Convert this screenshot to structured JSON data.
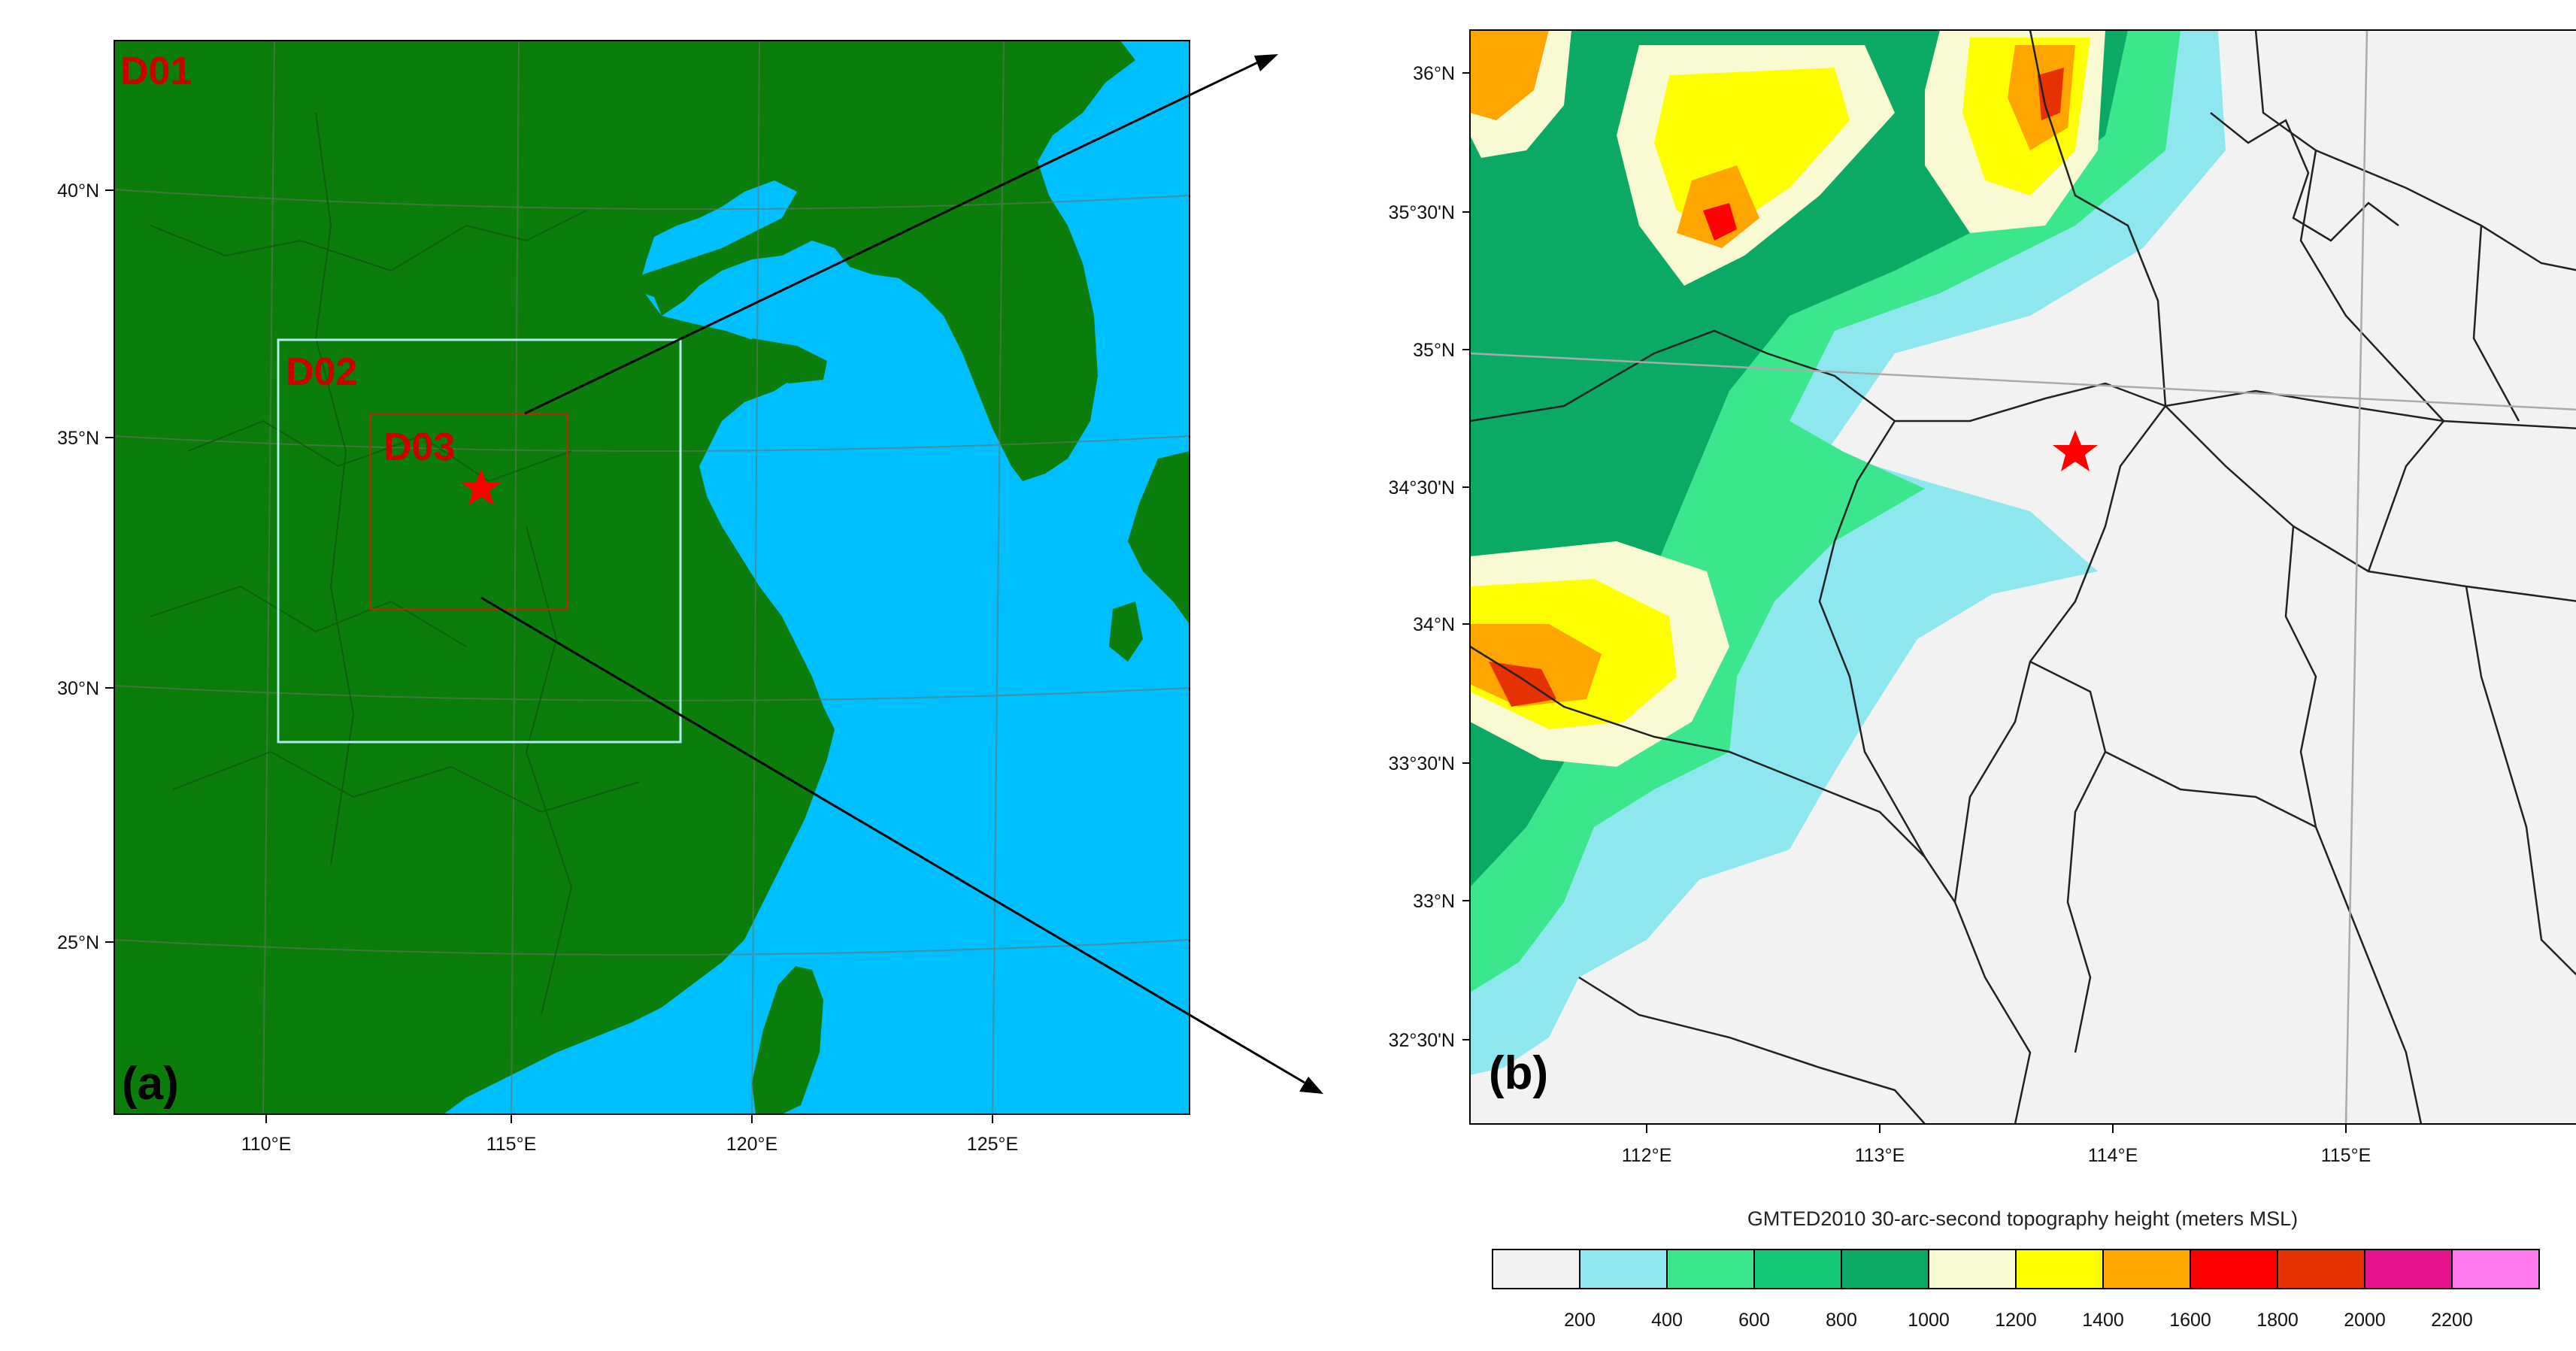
{
  "panel_a": {
    "label": "(a)",
    "domains": [
      {
        "id": "d01",
        "name": "D01"
      },
      {
        "id": "d02",
        "name": "D02"
      },
      {
        "id": "d03",
        "name": "D03"
      }
    ],
    "lat_ticks": [
      "40°N",
      "35°N",
      "30°N",
      "25°N"
    ],
    "lon_ticks": [
      "110°E",
      "115°E",
      "120°E",
      "125°E"
    ]
  },
  "panel_b": {
    "label": "(b)",
    "lat_ticks": [
      "36°N",
      "35°30'N",
      "35°N",
      "34°30'N",
      "34°N",
      "33°30'N",
      "33°N",
      "32°30'N"
    ],
    "lon_ticks": [
      "112°E",
      "113°E",
      "114°E",
      "115°E"
    ]
  },
  "colorbar": {
    "title": "GMTED2010 30-arc-second topography height  (meters MSL)",
    "colors": [
      "#f2f2f2",
      "#8ee6ee",
      "#3ce68c",
      "#14c878",
      "#0aaa64",
      "#fafad2",
      "#ffff00",
      "#ffa500",
      "#ff0000",
      "#e63200",
      "#e6148c",
      "#ff78f0"
    ],
    "labels": [
      "200",
      "400",
      "600",
      "800",
      "1000",
      "1200",
      "1400",
      "1600",
      "1800",
      "2000",
      "2200"
    ]
  },
  "colors": {
    "land": "#0a7d0a",
    "ocean": "#00bfff",
    "star": "#ff0000",
    "d02_box": "#b0ecec",
    "d03_box": "#cc2200"
  }
}
